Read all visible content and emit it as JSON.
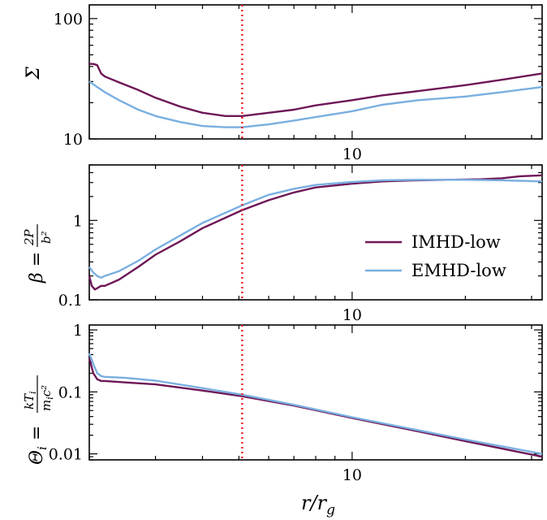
{
  "chart_data": [
    {
      "type": "line",
      "ylabel": "Σ",
      "yscale": "log",
      "xscale": "log",
      "xlim": [
        2,
        32
      ],
      "ylim": [
        10,
        130
      ],
      "yticks": [
        {
          "value": 10,
          "label": "10"
        },
        {
          "value": 100,
          "label": "100"
        }
      ],
      "xticks": [
        {
          "value": 10,
          "label": "10"
        }
      ],
      "vline_x": 5.1,
      "series": [
        {
          "name": "IMHD-low",
          "color": "#6e1656",
          "x": [
            2.0,
            2.05,
            2.1,
            2.15,
            2.2,
            2.4,
            2.7,
            3.0,
            3.5,
            4.0,
            4.6,
            5.1,
            6,
            7,
            8,
            10,
            12,
            15,
            20,
            25,
            32
          ],
          "y": [
            42,
            42,
            41,
            35,
            33,
            29.5,
            25.5,
            22,
            18.5,
            16.5,
            15.5,
            15.5,
            16.5,
            17.5,
            19,
            21,
            23,
            25,
            28,
            31,
            35
          ]
        },
        {
          "name": "EMHD-low",
          "color": "#7aafe0",
          "x": [
            2.0,
            2.1,
            2.2,
            2.4,
            2.7,
            3.0,
            3.5,
            4.0,
            4.6,
            5.1,
            6,
            7,
            8,
            10,
            12,
            15,
            20,
            25,
            32
          ],
          "y": [
            30,
            27,
            24.5,
            21,
            17.5,
            15.5,
            13.8,
            12.8,
            12.5,
            12.5,
            13.2,
            14.2,
            15.2,
            17,
            19.2,
            21,
            22.5,
            24.5,
            27
          ]
        }
      ]
    },
    {
      "type": "line",
      "ylabel": "β = 2P/b²",
      "yscale": "log",
      "xscale": "log",
      "xlim": [
        2,
        32
      ],
      "ylim": [
        0.1,
        5
      ],
      "yticks": [
        {
          "value": 0.1,
          "label": "0.1"
        },
        {
          "value": 1,
          "label": "1"
        }
      ],
      "xticks": [
        {
          "value": 10,
          "label": "10"
        }
      ],
      "vline_x": 5.1,
      "legend": {
        "position": "lower-right",
        "entries": [
          "IMHD-low",
          "EMHD-low"
        ]
      },
      "series": [
        {
          "name": "IMHD-low",
          "color": "#6e1656",
          "x": [
            2.0,
            2.03,
            2.07,
            2.1,
            2.15,
            2.2,
            2.4,
            2.7,
            3.0,
            3.5,
            4.0,
            5.1,
            6,
            7,
            8,
            10,
            12,
            15,
            18,
            22,
            25,
            28,
            32
          ],
          "y": [
            0.2,
            0.15,
            0.135,
            0.14,
            0.15,
            0.15,
            0.18,
            0.26,
            0.37,
            0.55,
            0.8,
            1.35,
            1.8,
            2.25,
            2.6,
            2.9,
            3.1,
            3.2,
            3.25,
            3.3,
            3.4,
            3.6,
            3.7
          ]
        },
        {
          "name": "EMHD-low",
          "color": "#7aafe0",
          "x": [
            2.0,
            2.05,
            2.1,
            2.15,
            2.2,
            2.4,
            2.7,
            3.0,
            3.5,
            4.0,
            5.1,
            6,
            7,
            8,
            10,
            12,
            15,
            20,
            25,
            32
          ],
          "y": [
            0.26,
            0.22,
            0.2,
            0.19,
            0.2,
            0.23,
            0.31,
            0.43,
            0.65,
            0.93,
            1.55,
            2.1,
            2.5,
            2.8,
            3.05,
            3.2,
            3.25,
            3.25,
            3.2,
            3.1
          ]
        }
      ]
    },
    {
      "type": "line",
      "xlabel": "r/r_g",
      "ylabel": "Θ_i = kT_i/(m_i c²)",
      "yscale": "log",
      "xscale": "log",
      "xlim": [
        2,
        32
      ],
      "ylim": [
        0.008,
        1.2
      ],
      "yticks": [
        {
          "value": 0.01,
          "label": "0.01"
        },
        {
          "value": 0.1,
          "label": "0.1"
        },
        {
          "value": 1,
          "label": "1"
        }
      ],
      "xticks": [
        {
          "value": 10,
          "label": "10"
        }
      ],
      "vline_x": 5.1,
      "series": [
        {
          "name": "IMHD-low",
          "color": "#6e1656",
          "x": [
            2.0,
            2.05,
            2.1,
            2.15,
            2.2,
            2.5,
            3,
            4,
            5.1,
            7,
            10,
            15,
            20,
            32
          ],
          "y": [
            0.35,
            0.2,
            0.16,
            0.15,
            0.15,
            0.142,
            0.132,
            0.105,
            0.085,
            0.06,
            0.038,
            0.023,
            0.016,
            0.009
          ]
        },
        {
          "name": "EMHD-low",
          "color": "#7aafe0",
          "x": [
            2.0,
            2.05,
            2.1,
            2.15,
            2.2,
            2.5,
            3,
            4,
            5.1,
            7,
            10,
            15,
            20,
            32
          ],
          "y": [
            0.42,
            0.28,
            0.2,
            0.18,
            0.175,
            0.168,
            0.152,
            0.115,
            0.09,
            0.062,
            0.039,
            0.024,
            0.017,
            0.01
          ]
        }
      ]
    }
  ]
}
